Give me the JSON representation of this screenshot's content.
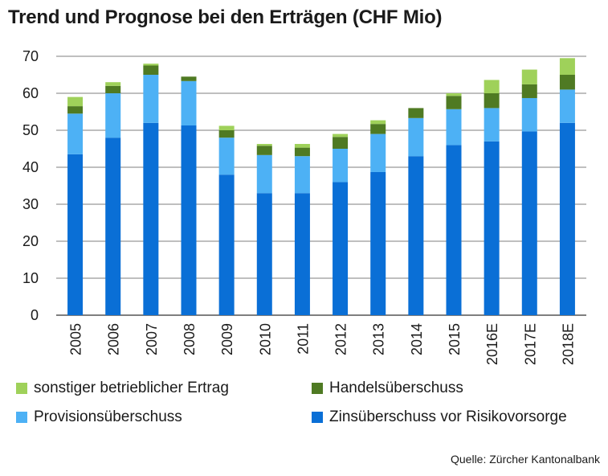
{
  "chart_data": {
    "type": "bar",
    "stacked": true,
    "title": "Trend und Prognose bei den Erträgen (CHF Mio)",
    "xlabel": "",
    "ylabel": "",
    "ylim": [
      0,
      70
    ],
    "yticks": [
      0,
      10,
      20,
      30,
      40,
      50,
      60,
      70
    ],
    "grid": true,
    "categories": [
      "2005",
      "2006",
      "2007",
      "2008",
      "2009",
      "2010",
      "2011",
      "2012",
      "2013",
      "2014",
      "2015",
      "2016E",
      "2017E",
      "2018E"
    ],
    "series": [
      {
        "name": "Zinsüberschuss vor Risikovorsorge",
        "color": "#0a6fd6",
        "values": [
          43.5,
          48,
          52,
          51.3,
          38,
          33,
          33,
          36,
          38.7,
          43,
          46,
          47,
          49.7,
          52
        ]
      },
      {
        "name": "Provisionsüberschuss",
        "color": "#4db1f5",
        "values": [
          11,
          12,
          13,
          12,
          10,
          10.3,
          10,
          9,
          10.3,
          10.3,
          9.7,
          9,
          9,
          9
        ]
      },
      {
        "name": "Handelsüberschuss",
        "color": "#4f7a23",
        "values": [
          2,
          2,
          2.5,
          1.2,
          2,
          2.5,
          2.3,
          3.2,
          2.7,
          2.7,
          3.6,
          4,
          3.7,
          4
        ]
      },
      {
        "name": "sonstiger betrieblicher Ertrag",
        "color": "#9fd15a",
        "values": [
          2.5,
          1,
          0.5,
          0,
          1.2,
          0.5,
          1,
          0.8,
          1,
          0,
          0.7,
          3.6,
          4,
          4.5
        ]
      }
    ],
    "legend_order": [
      "sonstiger betrieblicher Ertrag",
      "Handelsüberschuss",
      "Provisionsüberschuss",
      "Zinsüberschuss vor Risikovorsorge"
    ],
    "legend_position": "bottom",
    "source": "Quelle: Zürcher Kantonalbank"
  }
}
